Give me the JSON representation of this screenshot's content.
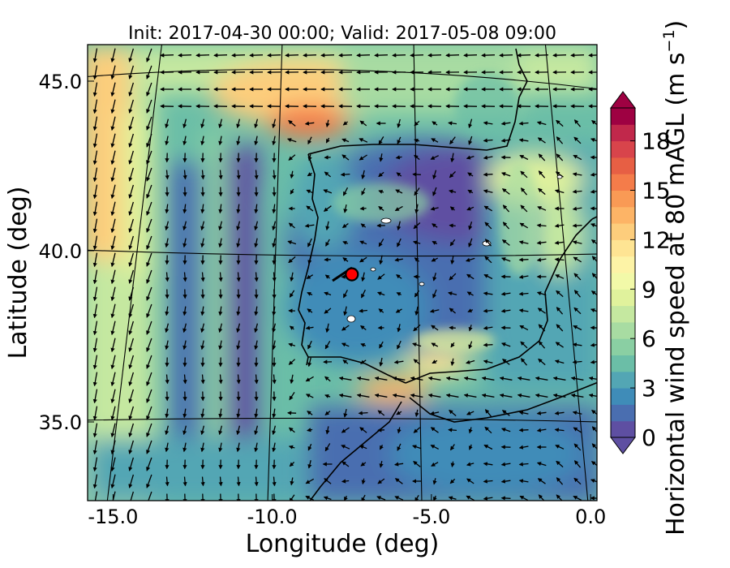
{
  "title": "Init: 2017-04-30 00:00; Valid: 2017-05-08 09:00",
  "xlabel": "Longitude (deg)",
  "ylabel": "Latitude (deg)",
  "colorbar_label_main": "Horizontal wind speed at 80 mAGL (m s",
  "colorbar_label_exp": "−1",
  "colorbar_label_close": ")",
  "x_ticks": [
    {
      "label": "-15.0",
      "value": -15
    },
    {
      "label": "-10.0",
      "value": -10
    },
    {
      "label": "-5.0",
      "value": -5
    },
    {
      "label": "0.0",
      "value": 0
    }
  ],
  "y_ticks": [
    {
      "label": "45.0",
      "value": 45
    },
    {
      "label": "40.0",
      "value": 40
    },
    {
      "label": "35.0",
      "value": 35
    }
  ],
  "colorbar_ticks": [
    {
      "label": "0",
      "value": 0
    },
    {
      "label": "3",
      "value": 3
    },
    {
      "label": "6",
      "value": 6
    },
    {
      "label": "9",
      "value": 9
    },
    {
      "label": "12",
      "value": 12
    },
    {
      "label": "15",
      "value": 15
    },
    {
      "label": "18",
      "value": 18
    }
  ],
  "colorbar": {
    "min": 0,
    "max": 20,
    "step": 1,
    "extend": "both",
    "colors": [
      "#5e4fa2",
      "#4a6eb0",
      "#3f8cb8",
      "#53a6b4",
      "#6bbea7",
      "#8acfa3",
      "#a8dca2",
      "#c5e8a0",
      "#e0f29c",
      "#f2f9a8",
      "#fdf3a6",
      "#fee493",
      "#fdcd7c",
      "#fdb466",
      "#f99a55",
      "#f47c4a",
      "#e75f44",
      "#d8444b",
      "#c1284b",
      "#9e0142"
    ]
  },
  "extent": {
    "lon": [
      -15.8,
      0.2
    ],
    "lat": [
      32.9,
      46.2
    ]
  },
  "marker": {
    "lon": -7.5,
    "lat": 39.5,
    "color": "#ff0000"
  }
}
